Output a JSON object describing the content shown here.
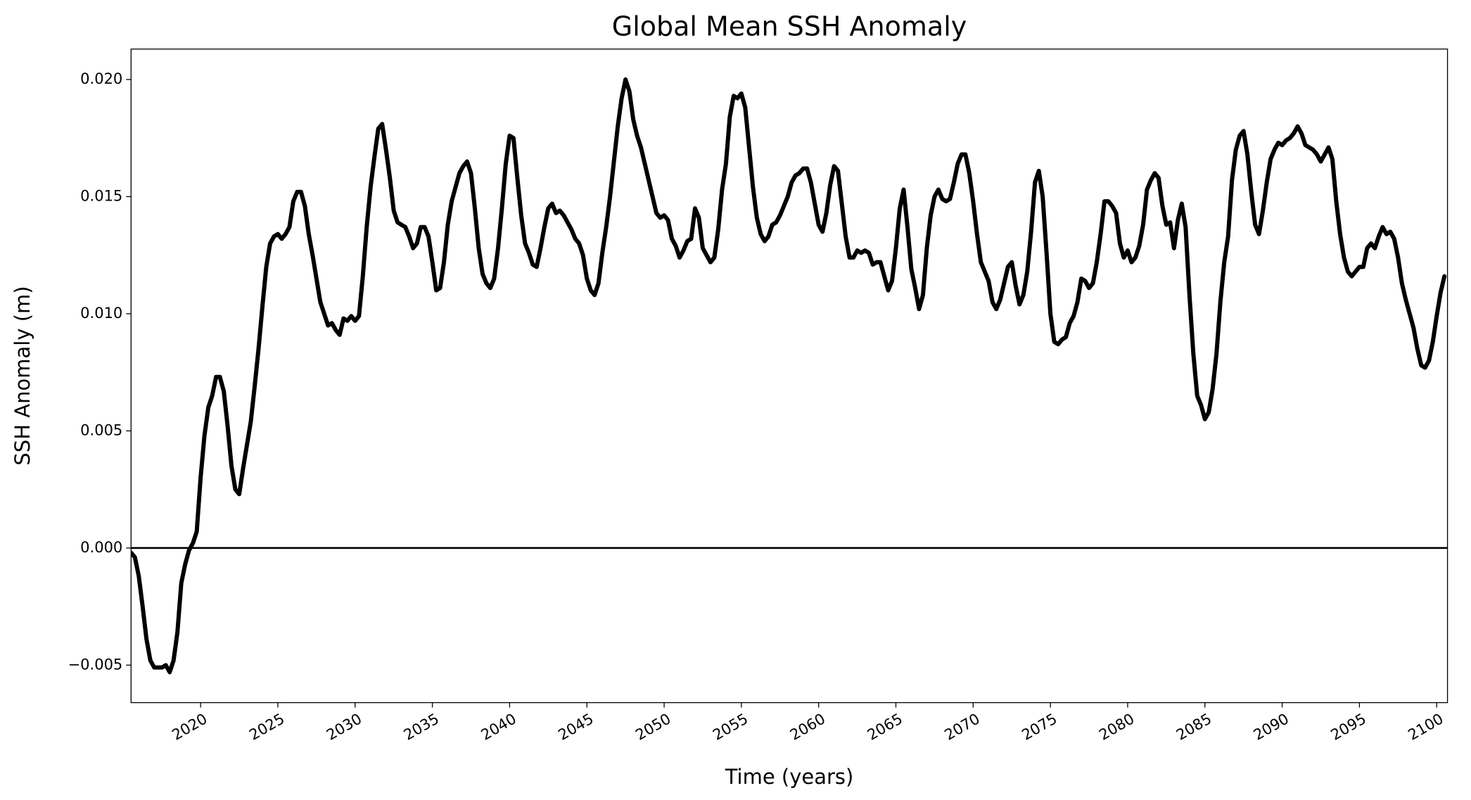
{
  "chart_data": {
    "type": "line",
    "title": "Global Mean SSH Anomaly",
    "xlabel": "Time (years)",
    "ylabel": "SSH Anomaly (m)",
    "xlim": [
      2015.5,
      2100.7
    ],
    "ylim": [
      -0.0066,
      0.0213
    ],
    "xticks": [
      2020,
      2025,
      2030,
      2035,
      2040,
      2045,
      2050,
      2055,
      2060,
      2065,
      2070,
      2075,
      2080,
      2085,
      2090,
      2095,
      2100
    ],
    "yticks": [
      {
        "value": -0.005,
        "label": "−0.005"
      },
      {
        "value": 0,
        "label": "0.000"
      },
      {
        "value": 0.005,
        "label": "0.005"
      },
      {
        "value": 0.01,
        "label": "0.010"
      },
      {
        "value": 0.015,
        "label": "0.015"
      },
      {
        "value": 0.02,
        "label": "0.020"
      }
    ],
    "hlines": [
      0
    ],
    "grid": false,
    "x": [
      2015.5,
      2015.75,
      2016,
      2016.25,
      2016.5,
      2016.75,
      2017,
      2017.25,
      2017.5,
      2017.75,
      2018,
      2018.25,
      2018.5,
      2018.75,
      2019,
      2019.25,
      2019.5,
      2019.75,
      2020,
      2020.25,
      2020.5,
      2020.75,
      2021,
      2021.25,
      2021.5,
      2021.75,
      2022,
      2022.25,
      2022.5,
      2022.75,
      2023,
      2023.25,
      2023.5,
      2023.75,
      2024,
      2024.25,
      2024.5,
      2024.75,
      2025,
      2025.25,
      2025.5,
      2025.75,
      2026,
      2026.25,
      2026.5,
      2026.75,
      2027,
      2027.25,
      2027.5,
      2027.75,
      2028,
      2028.25,
      2028.5,
      2028.75,
      2029,
      2029.25,
      2029.5,
      2029.75,
      2030,
      2030.25,
      2030.5,
      2030.75,
      2031,
      2031.25,
      2031.5,
      2031.75,
      2032,
      2032.25,
      2032.5,
      2032.75,
      2033,
      2033.25,
      2033.5,
      2033.75,
      2034,
      2034.25,
      2034.5,
      2034.75,
      2035,
      2035.25,
      2035.5,
      2035.75,
      2036,
      2036.25,
      2036.5,
      2036.75,
      2037,
      2037.25,
      2037.5,
      2037.75,
      2038,
      2038.25,
      2038.5,
      2038.75,
      2039,
      2039.25,
      2039.5,
      2039.75,
      2040,
      2040.25,
      2040.5,
      2040.75,
      2041,
      2041.25,
      2041.5,
      2041.75,
      2042,
      2042.25,
      2042.5,
      2042.75,
      2043,
      2043.25,
      2043.5,
      2043.75,
      2044,
      2044.25,
      2044.5,
      2044.75,
      2045,
      2045.25,
      2045.5,
      2045.75,
      2046,
      2046.25,
      2046.5,
      2046.75,
      2047,
      2047.25,
      2047.5,
      2047.75,
      2048,
      2048.25,
      2048.5,
      2048.75,
      2049,
      2049.25,
      2049.5,
      2049.75,
      2050,
      2050.25,
      2050.5,
      2050.75,
      2051,
      2051.25,
      2051.5,
      2051.75,
      2052,
      2052.25,
      2052.5,
      2052.75,
      2053,
      2053.25,
      2053.5,
      2053.75,
      2054,
      2054.25,
      2054.5,
      2054.75,
      2055,
      2055.25,
      2055.5,
      2055.75,
      2056,
      2056.25,
      2056.5,
      2056.75,
      2057,
      2057.25,
      2057.5,
      2057.75,
      2058,
      2058.25,
      2058.5,
      2058.75,
      2059,
      2059.25,
      2059.5,
      2059.75,
      2060,
      2060.25,
      2060.5,
      2060.75,
      2061,
      2061.25,
      2061.5,
      2061.75,
      2062,
      2062.25,
      2062.5,
      2062.75,
      2063,
      2063.25,
      2063.5,
      2063.75,
      2064,
      2064.25,
      2064.5,
      2064.75,
      2065,
      2065.25,
      2065.5,
      2065.75,
      2066,
      2066.25,
      2066.5,
      2066.75,
      2067,
      2067.25,
      2067.5,
      2067.75,
      2068,
      2068.25,
      2068.5,
      2068.75,
      2069,
      2069.25,
      2069.5,
      2069.75,
      2070,
      2070.25,
      2070.5,
      2070.75,
      2071,
      2071.25,
      2071.5,
      2071.75,
      2072,
      2072.25,
      2072.5,
      2072.75,
      2073,
      2073.25,
      2073.5,
      2073.75,
      2074,
      2074.25,
      2074.5,
      2074.75,
      2075,
      2075.25,
      2075.5,
      2075.75,
      2076,
      2076.25,
      2076.5,
      2076.75,
      2077,
      2077.25,
      2077.5,
      2077.75,
      2078,
      2078.25,
      2078.5,
      2078.75,
      2079,
      2079.25,
      2079.5,
      2079.75,
      2080,
      2080.25,
      2080.5,
      2080.75,
      2081,
      2081.25,
      2081.5,
      2081.75,
      2082,
      2082.25,
      2082.5,
      2082.75,
      2083,
      2083.25,
      2083.5,
      2083.75,
      2084,
      2084.25,
      2084.5,
      2084.75,
      2085,
      2085.25,
      2085.5,
      2085.75,
      2086,
      2086.25,
      2086.5,
      2086.75,
      2087,
      2087.25,
      2087.5,
      2087.75,
      2088,
      2088.25,
      2088.5,
      2088.75,
      2089,
      2089.25,
      2089.5,
      2089.75,
      2090,
      2090.25,
      2090.5,
      2090.75,
      2091,
      2091.25,
      2091.5,
      2091.75,
      2092,
      2092.25,
      2092.5,
      2092.75,
      2093,
      2093.25,
      2093.5,
      2093.75,
      2094,
      2094.25,
      2094.5,
      2094.75,
      2095,
      2095.25,
      2095.5,
      2095.75,
      2096,
      2096.25,
      2096.5,
      2096.75,
      2097,
      2097.25,
      2097.5,
      2097.75,
      2098,
      2098.25,
      2098.5,
      2098.75,
      2099,
      2099.25,
      2099.5,
      2099.75,
      2100,
      2100.25,
      2100.5
    ],
    "series": [
      {
        "name": "Global Mean SSH Anomaly",
        "color": "#000000",
        "values": [
          -0.0002,
          -0.0004,
          -0.0012,
          -0.0025,
          -0.0039,
          -0.0048,
          -0.0051,
          -0.0051,
          -0.0051,
          -0.005,
          -0.0053,
          -0.0048,
          -0.0036,
          -0.0015,
          -0.0007,
          -0.0001,
          0.0002,
          0.0007,
          0.003,
          0.0048,
          0.006,
          0.0065,
          0.0073,
          0.0073,
          0.0067,
          0.0052,
          0.0035,
          0.0025,
          0.0023,
          0.0034,
          0.0044,
          0.0054,
          0.0069,
          0.0085,
          0.0103,
          0.012,
          0.013,
          0.0133,
          0.0134,
          0.0132,
          0.0134,
          0.0137,
          0.0148,
          0.0152,
          0.0152,
          0.0146,
          0.0134,
          0.0125,
          0.0115,
          0.0105,
          0.01,
          0.0095,
          0.0096,
          0.0093,
          0.0091,
          0.0098,
          0.0097,
          0.0099,
          0.0097,
          0.0099,
          0.0116,
          0.0137,
          0.0154,
          0.0167,
          0.0179,
          0.0181,
          0.017,
          0.0158,
          0.0144,
          0.0139,
          0.0138,
          0.0137,
          0.0133,
          0.0128,
          0.013,
          0.0137,
          0.0137,
          0.0133,
          0.0122,
          0.011,
          0.0111,
          0.0122,
          0.0138,
          0.0148,
          0.0154,
          0.016,
          0.0163,
          0.0165,
          0.016,
          0.0145,
          0.0128,
          0.0117,
          0.0113,
          0.0111,
          0.0115,
          0.0128,
          0.0145,
          0.0164,
          0.0176,
          0.0175,
          0.0158,
          0.0142,
          0.013,
          0.0126,
          0.0121,
          0.012,
          0.0128,
          0.0137,
          0.0145,
          0.0147,
          0.0143,
          0.0144,
          0.0142,
          0.0139,
          0.0136,
          0.0132,
          0.013,
          0.0125,
          0.0115,
          0.011,
          0.0108,
          0.0113,
          0.0126,
          0.0137,
          0.015,
          0.0165,
          0.018,
          0.0192,
          0.02,
          0.0195,
          0.0183,
          0.0176,
          0.0171,
          0.0164,
          0.0157,
          0.015,
          0.0143,
          0.0141,
          0.0142,
          0.014,
          0.0132,
          0.0129,
          0.0124,
          0.0127,
          0.0131,
          0.0132,
          0.0145,
          0.0141,
          0.0128,
          0.0125,
          0.0122,
          0.0124,
          0.0136,
          0.0153,
          0.0164,
          0.0184,
          0.0193,
          0.0192,
          0.0194,
          0.0188,
          0.0171,
          0.0154,
          0.0141,
          0.0134,
          0.0131,
          0.0133,
          0.0138,
          0.0139,
          0.0142,
          0.0146,
          0.015,
          0.0156,
          0.0159,
          0.016,
          0.0162,
          0.0162,
          0.0156,
          0.0147,
          0.0138,
          0.0135,
          0.0143,
          0.0155,
          0.0163,
          0.0161,
          0.0147,
          0.0133,
          0.0124,
          0.0124,
          0.0127,
          0.0126,
          0.0127,
          0.0126,
          0.0121,
          0.0122,
          0.0122,
          0.0116,
          0.011,
          0.0114,
          0.0128,
          0.0145,
          0.0153,
          0.0137,
          0.0119,
          0.0111,
          0.0102,
          0.0108,
          0.0128,
          0.0142,
          0.015,
          0.0153,
          0.0149,
          0.0148,
          0.0149,
          0.0156,
          0.0164,
          0.0168,
          0.0168,
          0.016,
          0.0148,
          0.0134,
          0.0122,
          0.0118,
          0.0114,
          0.0105,
          0.0102,
          0.0106,
          0.0113,
          0.012,
          0.0122,
          0.0112,
          0.0104,
          0.0108,
          0.0118,
          0.0135,
          0.0156,
          0.0161,
          0.015,
          0.0126,
          0.01,
          0.0088,
          0.0087,
          0.0089,
          0.009,
          0.0096,
          0.0099,
          0.0105,
          0.0115,
          0.0114,
          0.0111,
          0.0113,
          0.0122,
          0.0134,
          0.0148,
          0.0148,
          0.0146,
          0.0143,
          0.013,
          0.0124,
          0.0127,
          0.0122,
          0.0124,
          0.0129,
          0.0138,
          0.0153,
          0.0157,
          0.016,
          0.0158,
          0.0146,
          0.0138,
          0.0139,
          0.0128,
          0.014,
          0.0147,
          0.0137,
          0.0108,
          0.0083,
          0.0065,
          0.0061,
          0.0055,
          0.0058,
          0.0068,
          0.0083,
          0.0105,
          0.0122,
          0.0133,
          0.0157,
          0.017,
          0.0176,
          0.0178,
          0.0168,
          0.0152,
          0.0138,
          0.0134,
          0.0144,
          0.0156,
          0.0166,
          0.017,
          0.0173,
          0.0172,
          0.0174,
          0.0175,
          0.0177,
          0.018,
          0.0177,
          0.0172,
          0.0171,
          0.017,
          0.0168,
          0.0165,
          0.0168,
          0.0171,
          0.0166,
          0.0148,
          0.0134,
          0.0124,
          0.0118,
          0.0116,
          0.0118,
          0.012,
          0.012,
          0.0128,
          0.013,
          0.0128,
          0.0133,
          0.0137,
          0.0134,
          0.0135,
          0.0132,
          0.0124,
          0.0113,
          0.0106,
          0.01,
          0.0094,
          0.0085,
          0.0078,
          0.0077,
          0.008,
          0.0088,
          0.0099,
          0.0109,
          0.0116
        ]
      }
    ]
  }
}
